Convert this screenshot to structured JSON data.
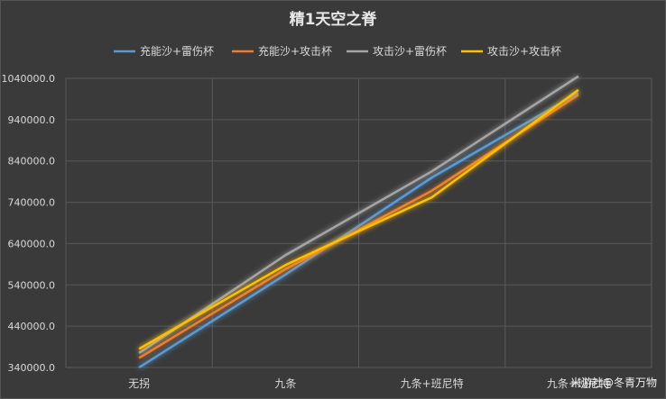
{
  "chart_data": {
    "type": "line",
    "title": "精1天空之脊",
    "categories": [
      "无拐",
      "九条",
      "九条+班尼特",
      "九条+班尼特"
    ],
    "ylim": [
      340000,
      1040000
    ],
    "yticks": [
      "340000.0",
      "440000.0",
      "540000.0",
      "640000.0",
      "740000.0",
      "840000.0",
      "940000.0",
      "1040000.0"
    ],
    "grid": true,
    "legend_position": "top",
    "series": [
      {
        "name": "充能沙+雷伤杯",
        "color": "#5b9bd5",
        "values": [
          340000,
          565000,
          800000,
          1005000
        ]
      },
      {
        "name": "充能沙+攻击杯",
        "color": "#ed7d31",
        "values": [
          363000,
          578000,
          768000,
          1000000
        ]
      },
      {
        "name": "攻击沙+雷伤杯",
        "color": "#a5a5a5",
        "values": [
          375000,
          612000,
          815000,
          1045000
        ]
      },
      {
        "name": "攻击沙+攻击杯",
        "color": "#ffc000",
        "values": [
          385000,
          588000,
          752000,
          1012000
        ]
      }
    ]
  },
  "watermark": "米游社@冬青万物"
}
